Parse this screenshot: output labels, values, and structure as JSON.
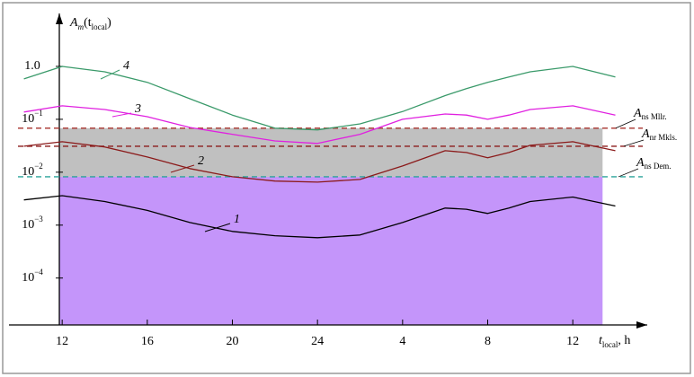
{
  "chart_data": {
    "type": "line",
    "ylabel": {
      "symbol": "A",
      "subscript": "m",
      "open": "(t",
      "arg_subscript": "local",
      "close": ")"
    },
    "xlabel": {
      "symbol": "t",
      "subscript": "local",
      "unit": ", h"
    },
    "log_y": true,
    "xlim": [
      9.5,
      39.5
    ],
    "ylim": [
      1.3e-05,
      10
    ],
    "xticks": [
      12,
      16,
      20,
      24,
      {
        "value": 28,
        "label": "4"
      },
      {
        "value": 32,
        "label": "8"
      },
      {
        "value": 36,
        "label": "12"
      }
    ],
    "yticks": [
      {
        "value": 1,
        "label": "1.0"
      },
      {
        "value": 0.1,
        "label": "10",
        "exponent": "−1"
      },
      {
        "value": 0.01,
        "label": "10",
        "exponent": "−2"
      },
      {
        "value": 0.001,
        "label": "10",
        "exponent": "−3"
      },
      {
        "value": 0.0001,
        "label": "10",
        "exponent": "−4"
      }
    ],
    "regions": [
      {
        "y_to": 0.0082,
        "x_to": 37.4,
        "color": "#c495fa"
      },
      {
        "y_from": 0.0082,
        "y_to": 0.068,
        "x_to": 37.4,
        "color": "#c0c0c0"
      }
    ],
    "hlines": [
      {
        "value": 0.068,
        "symbol": "A",
        "subscript": "ns Mllr.",
        "color": "#a8322c"
      },
      {
        "value": 0.031,
        "symbol": "A",
        "subscript": "nr Mkls.",
        "color": "#8b1a1a"
      },
      {
        "value": 0.0082,
        "symbol": "A",
        "subscript": "ns Dem.",
        "color": "#2aa39a"
      }
    ],
    "x": [
      10.2,
      12,
      14,
      16,
      18,
      20,
      22,
      24,
      26,
      28,
      30,
      31,
      32,
      33,
      34,
      36,
      38
    ],
    "series": [
      {
        "name": "1",
        "color": "#000000",
        "values": [
          0.003,
          0.0036,
          0.0028,
          0.0019,
          0.00112,
          0.00076,
          0.00063,
          0.00058,
          0.00065,
          0.00112,
          0.0021,
          0.002,
          0.00166,
          0.0021,
          0.0028,
          0.0034,
          0.0023
        ]
      },
      {
        "name": "2",
        "color": "#8b1a1a",
        "values": [
          0.031,
          0.0377,
          0.03,
          0.0194,
          0.0117,
          0.0082,
          0.0068,
          0.0065,
          0.0073,
          0.0131,
          0.0255,
          0.0236,
          0.0187,
          0.0236,
          0.0322,
          0.0377,
          0.0255
        ]
      },
      {
        "name": "3",
        "color": "#e020e0",
        "values": [
          0.137,
          0.18,
          0.153,
          0.112,
          0.07,
          0.052,
          0.039,
          0.035,
          0.052,
          0.1,
          0.126,
          0.12,
          0.1,
          0.12,
          0.153,
          0.18,
          0.12
        ]
      },
      {
        "name": "4",
        "color": "#3a9a6a",
        "values": [
          0.58,
          1.0,
          0.79,
          0.5,
          0.245,
          0.12,
          0.068,
          0.063,
          0.082,
          0.14,
          0.28,
          0.38,
          0.5,
          0.63,
          0.79,
          1.0,
          0.63
        ]
      }
    ]
  }
}
